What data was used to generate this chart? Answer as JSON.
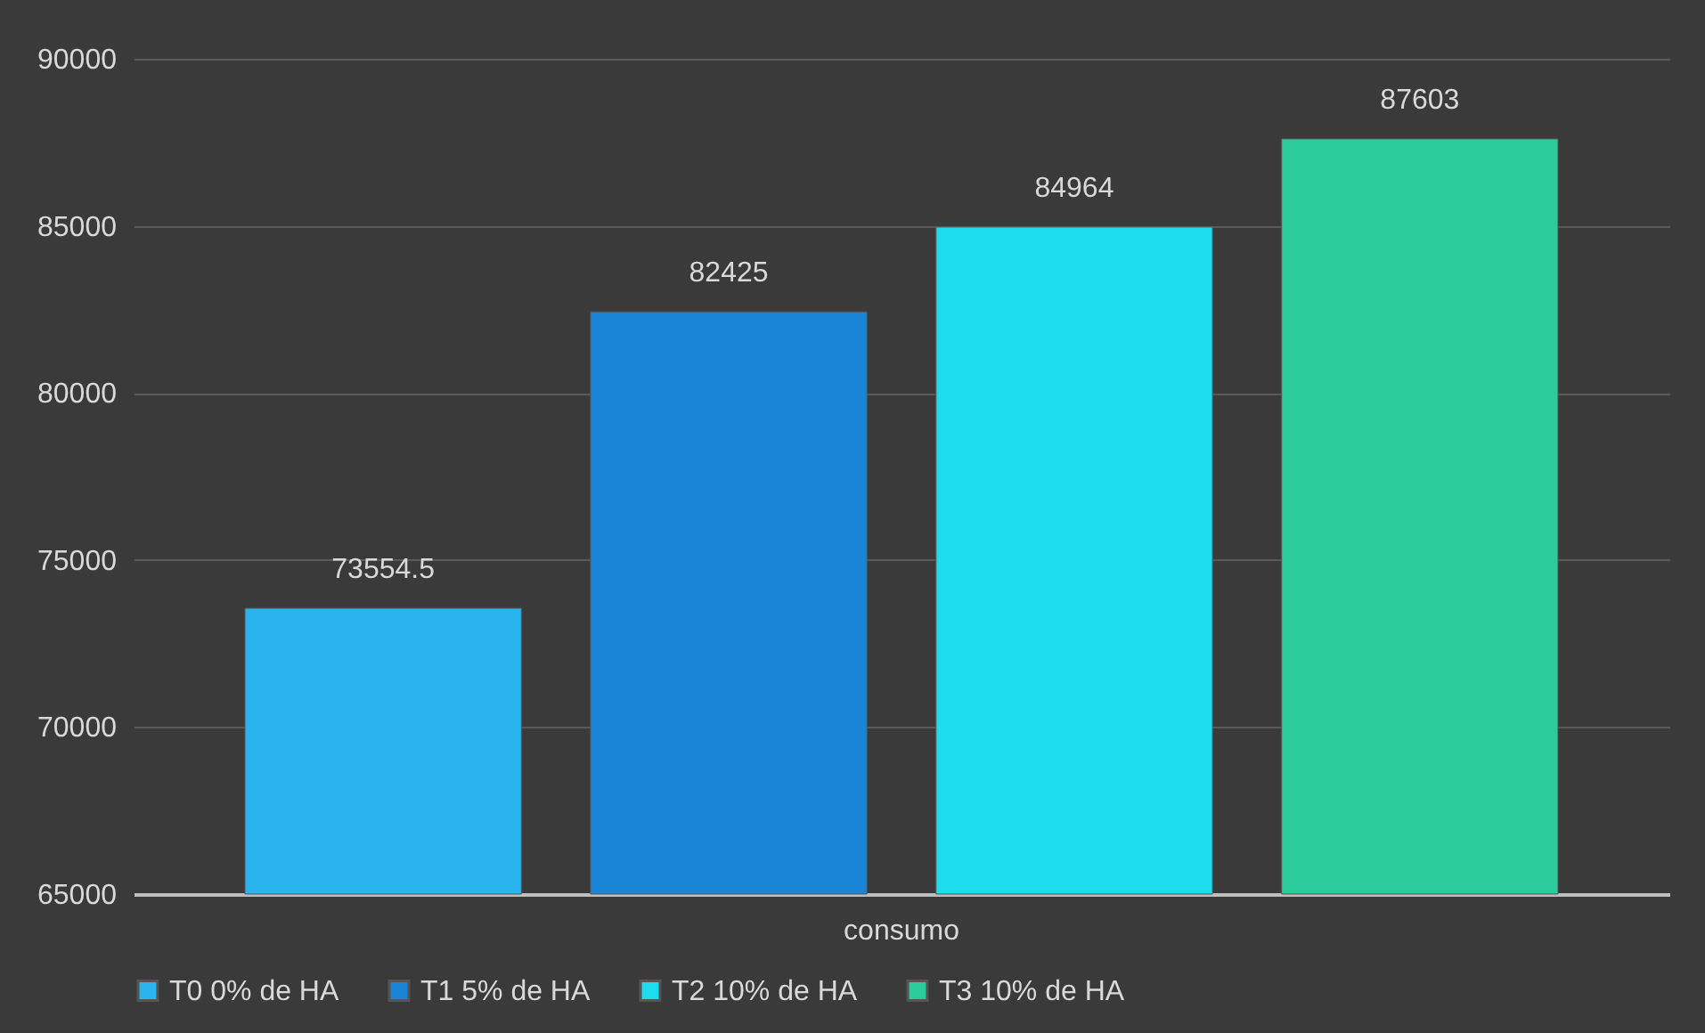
{
  "chart_data": {
    "type": "bar",
    "categories": [
      "consumo"
    ],
    "series": [
      {
        "name": "T0 0% de HA",
        "color": "#29b4ee",
        "values": [
          73554.5
        ]
      },
      {
        "name": "T1 5% de HA",
        "color": "#1a85d6",
        "values": [
          82425
        ]
      },
      {
        "name": "T2 10% de HA",
        "color": "#1cdcee",
        "values": [
          84964
        ]
      },
      {
        "name": "T3 10% de HA",
        "color": "#2ccb9c",
        "values": [
          87603
        ]
      }
    ],
    "ylim": [
      65000,
      90000
    ],
    "yticks": [
      65000,
      70000,
      75000,
      80000,
      85000,
      90000
    ],
    "grid": "y",
    "legend": "bottom",
    "data_labels": true
  }
}
